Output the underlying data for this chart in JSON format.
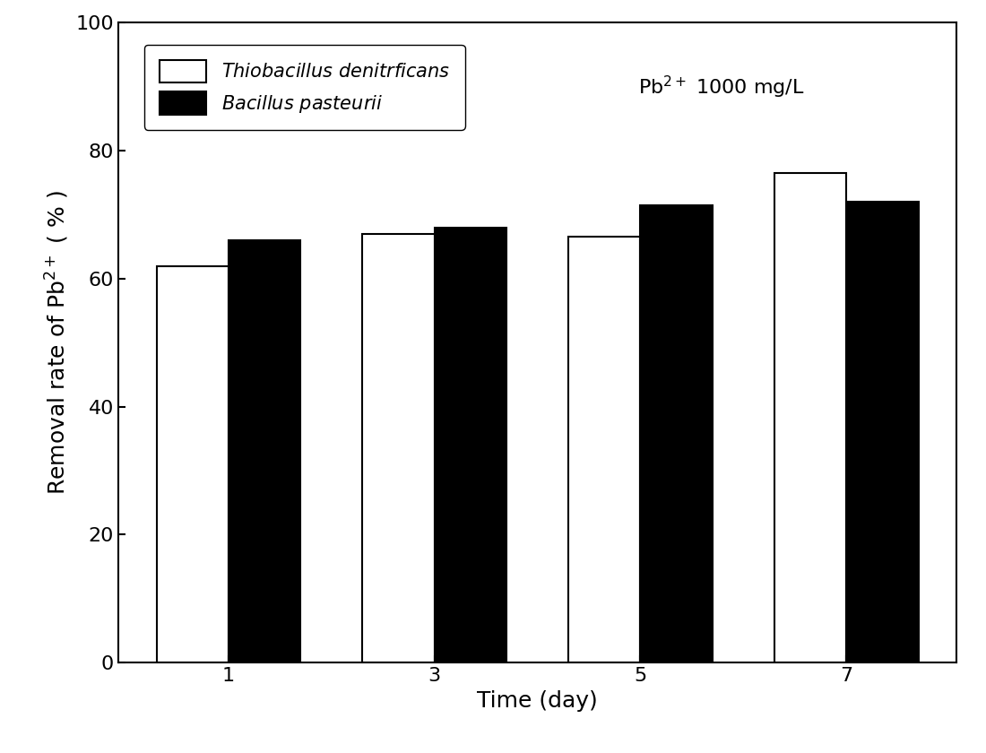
{
  "days": [
    1,
    3,
    5,
    7
  ],
  "thiobacillus_values": [
    62.0,
    67.0,
    66.5,
    76.5
  ],
  "bacillus_values": [
    66.0,
    68.0,
    71.5,
    72.0
  ],
  "bar_width": 0.35,
  "ylim": [
    0,
    100
  ],
  "yticks": [
    0,
    20,
    40,
    60,
    80,
    100
  ],
  "xlabel": "Time (day)",
  "ylabel": "Removal rate of Pb$^{2+}$ ( % )",
  "annotation": "Pb$^{2+}$ 1000 mg/L",
  "color1": "#ffffff",
  "color2": "#000000",
  "edgecolor": "#000000",
  "background_color": "#ffffff",
  "tick_fontsize": 16,
  "label_fontsize": 18,
  "legend_fontsize": 15,
  "annotation_fontsize": 16
}
